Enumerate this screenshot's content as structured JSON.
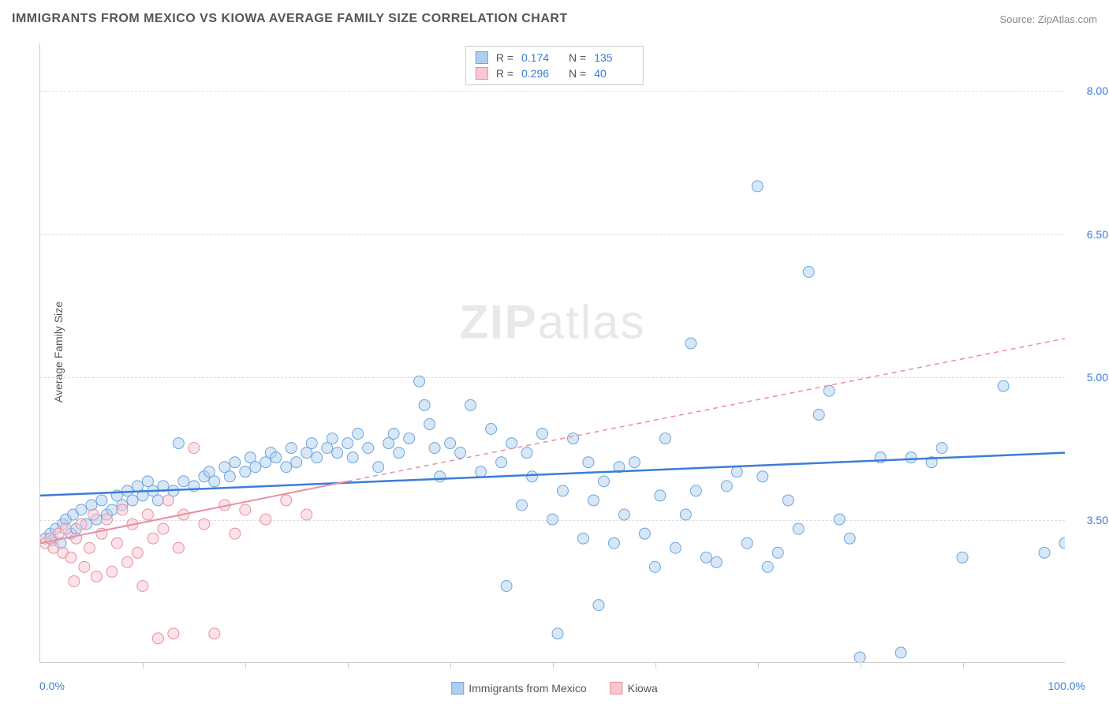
{
  "title": "IMMIGRANTS FROM MEXICO VS KIOWA AVERAGE FAMILY SIZE CORRELATION CHART",
  "source": "Source: ZipAtlas.com",
  "y_axis_label": "Average Family Size",
  "watermark_bold": "ZIP",
  "watermark_light": "atlas",
  "chart": {
    "type": "scatter",
    "xlim": [
      0,
      100
    ],
    "ylim": [
      2.0,
      8.5
    ],
    "x_tick_labels": [
      "0.0%",
      "100.0%"
    ],
    "y_ticks": [
      3.5,
      5.0,
      6.5,
      8.0
    ],
    "y_tick_labels": [
      "3.50",
      "5.00",
      "6.50",
      "8.00"
    ],
    "x_minor_ticks": [
      10,
      20,
      30,
      40,
      50,
      60,
      70,
      80,
      90
    ],
    "grid_color": "#dddddd",
    "axis_color": "#cccccc",
    "background_color": "#ffffff",
    "marker_radius": 7,
    "marker_opacity": 0.5,
    "series": [
      {
        "name": "Immigrants from Mexico",
        "color_fill": "#b0cfee",
        "color_stroke": "#6da5de",
        "R": "0.174",
        "N": "135",
        "trend": {
          "x1": 0,
          "y1": 3.75,
          "x2": 100,
          "y2": 4.2,
          "style": "solid",
          "width": 2.5,
          "color": "#3b7dd8"
        },
        "points": [
          [
            0.5,
            3.3
          ],
          [
            1,
            3.35
          ],
          [
            1.2,
            3.28
          ],
          [
            1.5,
            3.4
          ],
          [
            2,
            3.25
          ],
          [
            2.2,
            3.45
          ],
          [
            2.5,
            3.5
          ],
          [
            3,
            3.35
          ],
          [
            3.2,
            3.55
          ],
          [
            3.5,
            3.4
          ],
          [
            4,
            3.6
          ],
          [
            4.5,
            3.45
          ],
          [
            5,
            3.65
          ],
          [
            5.5,
            3.5
          ],
          [
            6,
            3.7
          ],
          [
            6.5,
            3.55
          ],
          [
            7,
            3.6
          ],
          [
            7.5,
            3.75
          ],
          [
            8,
            3.65
          ],
          [
            8.5,
            3.8
          ],
          [
            9,
            3.7
          ],
          [
            9.5,
            3.85
          ],
          [
            10,
            3.75
          ],
          [
            10.5,
            3.9
          ],
          [
            11,
            3.8
          ],
          [
            11.5,
            3.7
          ],
          [
            12,
            3.85
          ],
          [
            13,
            3.8
          ],
          [
            13.5,
            4.3
          ],
          [
            14,
            3.9
          ],
          [
            15,
            3.85
          ],
          [
            16,
            3.95
          ],
          [
            16.5,
            4.0
          ],
          [
            17,
            3.9
          ],
          [
            18,
            4.05
          ],
          [
            18.5,
            3.95
          ],
          [
            19,
            4.1
          ],
          [
            20,
            4.0
          ],
          [
            20.5,
            4.15
          ],
          [
            21,
            4.05
          ],
          [
            22,
            4.1
          ],
          [
            22.5,
            4.2
          ],
          [
            23,
            4.15
          ],
          [
            24,
            4.05
          ],
          [
            24.5,
            4.25
          ],
          [
            25,
            4.1
          ],
          [
            26,
            4.2
          ],
          [
            26.5,
            4.3
          ],
          [
            27,
            4.15
          ],
          [
            28,
            4.25
          ],
          [
            28.5,
            4.35
          ],
          [
            29,
            4.2
          ],
          [
            30,
            4.3
          ],
          [
            30.5,
            4.15
          ],
          [
            31,
            4.4
          ],
          [
            32,
            4.25
          ],
          [
            33,
            4.05
          ],
          [
            34,
            4.3
          ],
          [
            34.5,
            4.4
          ],
          [
            35,
            4.2
          ],
          [
            36,
            4.35
          ],
          [
            37,
            4.95
          ],
          [
            37.5,
            4.7
          ],
          [
            38,
            4.5
          ],
          [
            38.5,
            4.25
          ],
          [
            39,
            3.95
          ],
          [
            40,
            4.3
          ],
          [
            41,
            4.2
          ],
          [
            42,
            4.7
          ],
          [
            43,
            4.0
          ],
          [
            44,
            4.45
          ],
          [
            45,
            4.1
          ],
          [
            45.5,
            2.8
          ],
          [
            46,
            4.3
          ],
          [
            47,
            3.65
          ],
          [
            47.5,
            4.2
          ],
          [
            48,
            3.95
          ],
          [
            49,
            4.4
          ],
          [
            50,
            3.5
          ],
          [
            50.5,
            2.3
          ],
          [
            51,
            3.8
          ],
          [
            52,
            4.35
          ],
          [
            53,
            3.3
          ],
          [
            53.5,
            4.1
          ],
          [
            54,
            3.7
          ],
          [
            54.5,
            2.6
          ],
          [
            55,
            3.9
          ],
          [
            56,
            3.25
          ],
          [
            56.5,
            4.05
          ],
          [
            57,
            3.55
          ],
          [
            58,
            4.1
          ],
          [
            59,
            3.35
          ],
          [
            60,
            3.0
          ],
          [
            60.5,
            3.75
          ],
          [
            61,
            4.35
          ],
          [
            62,
            3.2
          ],
          [
            63,
            3.55
          ],
          [
            63.5,
            5.35
          ],
          [
            64,
            3.8
          ],
          [
            65,
            3.1
          ],
          [
            66,
            3.05
          ],
          [
            67,
            3.85
          ],
          [
            68,
            4.0
          ],
          [
            69,
            3.25
          ],
          [
            70,
            7.0
          ],
          [
            70.5,
            3.95
          ],
          [
            71,
            3.0
          ],
          [
            72,
            3.15
          ],
          [
            73,
            3.7
          ],
          [
            74,
            3.4
          ],
          [
            75,
            6.1
          ],
          [
            76,
            4.6
          ],
          [
            77,
            4.85
          ],
          [
            78,
            3.5
          ],
          [
            79,
            3.3
          ],
          [
            80,
            2.05
          ],
          [
            82,
            4.15
          ],
          [
            84,
            2.1
          ],
          [
            85,
            4.15
          ],
          [
            87,
            4.1
          ],
          [
            88,
            4.25
          ],
          [
            90,
            3.1
          ],
          [
            94,
            4.9
          ],
          [
            98,
            3.15
          ],
          [
            100,
            3.25
          ]
        ]
      },
      {
        "name": "Kiowa",
        "color_fill": "#f8c8d2",
        "color_stroke": "#e88fa2",
        "R": "0.296",
        "N": "40",
        "trend": {
          "x1": 0,
          "y1": 3.25,
          "x2": 30,
          "y2": 3.9,
          "style": "solid",
          "width": 2,
          "color": "#e88fa2",
          "extend_x2": 100,
          "extend_y2": 5.4,
          "extend_style": "dashed"
        },
        "points": [
          [
            0.5,
            3.25
          ],
          [
            1,
            3.3
          ],
          [
            1.3,
            3.2
          ],
          [
            1.8,
            3.35
          ],
          [
            2.2,
            3.15
          ],
          [
            2.5,
            3.4
          ],
          [
            3,
            3.1
          ],
          [
            3.3,
            2.85
          ],
          [
            3.5,
            3.3
          ],
          [
            4,
            3.45
          ],
          [
            4.3,
            3.0
          ],
          [
            4.8,
            3.2
          ],
          [
            5.2,
            3.55
          ],
          [
            5.5,
            2.9
          ],
          [
            6,
            3.35
          ],
          [
            6.5,
            3.5
          ],
          [
            7,
            2.95
          ],
          [
            7.5,
            3.25
          ],
          [
            8,
            3.6
          ],
          [
            8.5,
            3.05
          ],
          [
            9,
            3.45
          ],
          [
            9.5,
            3.15
          ],
          [
            10,
            2.8
          ],
          [
            10.5,
            3.55
          ],
          [
            11,
            3.3
          ],
          [
            11.5,
            2.25
          ],
          [
            12,
            3.4
          ],
          [
            12.5,
            3.7
          ],
          [
            13,
            2.3
          ],
          [
            13.5,
            3.2
          ],
          [
            14,
            3.55
          ],
          [
            15,
            4.25
          ],
          [
            16,
            3.45
          ],
          [
            17,
            2.3
          ],
          [
            18,
            3.65
          ],
          [
            19,
            3.35
          ],
          [
            20,
            3.6
          ],
          [
            22,
            3.5
          ],
          [
            24,
            3.7
          ],
          [
            26,
            3.55
          ]
        ]
      }
    ]
  },
  "bottom_legend": [
    {
      "label": "Immigrants from Mexico",
      "swatch": "blue"
    },
    {
      "label": "Kiowa",
      "swatch": "pink"
    }
  ],
  "top_legend_labels": {
    "R": "R =",
    "N": "N ="
  }
}
